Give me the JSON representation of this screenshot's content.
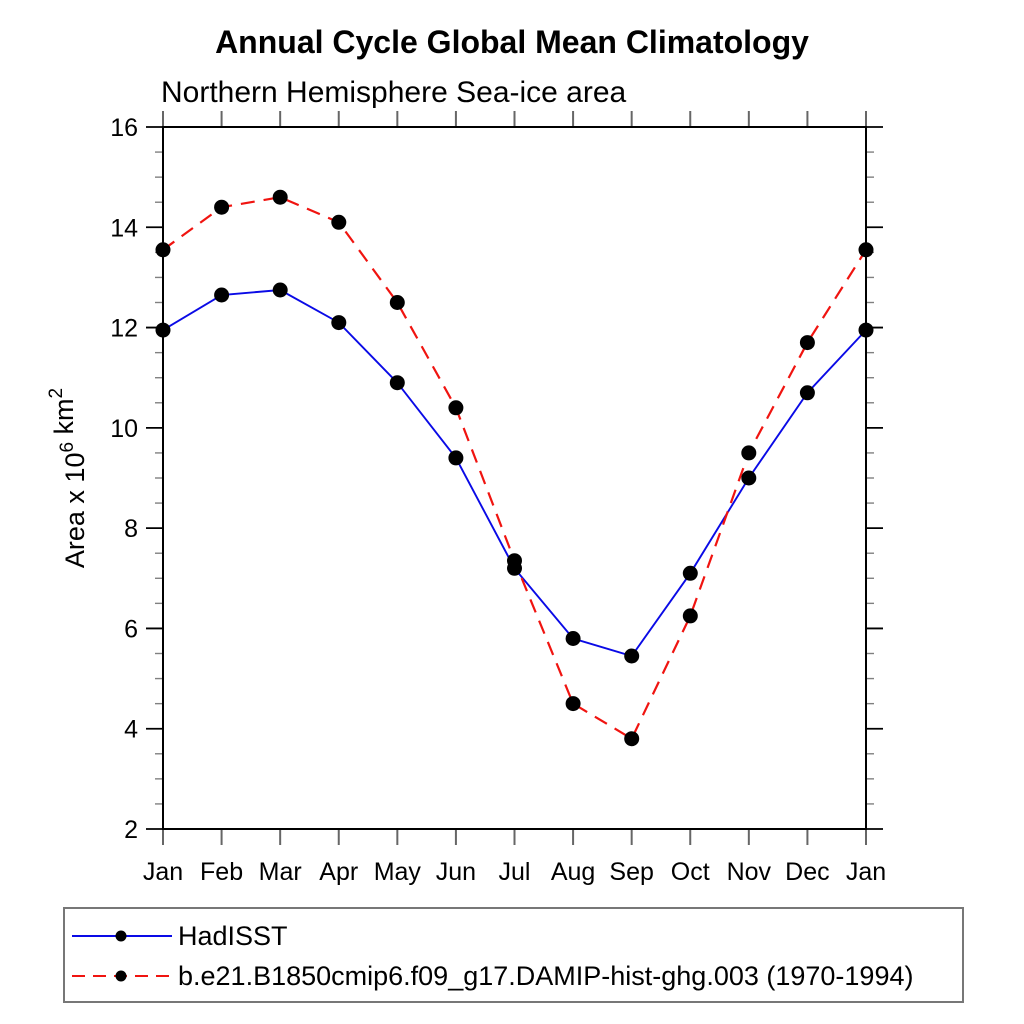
{
  "page": {
    "background": "#ffffff"
  },
  "chart_data": {
    "type": "line",
    "title": "Annual Cycle Global Mean Climatology",
    "subtitle": "Northern Hemisphere Sea-ice area",
    "ylabel": "Area x 10^6 km^2",
    "ylabel_parts": [
      {
        "text": "Area x 10",
        "sup": false
      },
      {
        "text": "6",
        "sup": true
      },
      {
        "text": " km",
        "sup": false
      },
      {
        "text": "2",
        "sup": true
      }
    ],
    "categories": [
      "Jan",
      "Feb",
      "Mar",
      "Apr",
      "May",
      "Jun",
      "Jul",
      "Aug",
      "Sep",
      "Oct",
      "Nov",
      "Dec",
      "Jan"
    ],
    "ylim": [
      2,
      16
    ],
    "yticks": [
      2,
      4,
      6,
      8,
      10,
      12,
      14,
      16
    ],
    "yminor_step": 0.5,
    "grid": false,
    "legend_position": "bottom",
    "marker_color": "#000000",
    "axis_color": "#000000",
    "series": [
      {
        "name": "HadISST",
        "color": "#0a0ae6",
        "line_style": "solid",
        "marker": "filled-circle",
        "values": [
          11.95,
          12.65,
          12.75,
          12.1,
          10.9,
          9.4,
          7.2,
          5.8,
          5.45,
          7.1,
          9.0,
          10.7,
          11.95
        ]
      },
      {
        "name": "b.e21.B1850cmip6.f09_g17.DAMIP-hist-ghg.003 (1970-1994)",
        "color": "#f01410",
        "line_style": "dashed",
        "marker": "filled-circle",
        "values": [
          13.55,
          14.4,
          14.6,
          14.1,
          12.5,
          10.4,
          7.35,
          4.5,
          3.8,
          6.25,
          9.5,
          11.7,
          13.55
        ]
      }
    ]
  }
}
